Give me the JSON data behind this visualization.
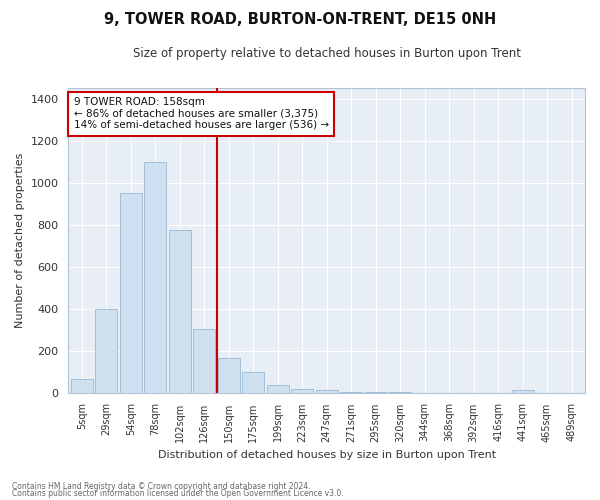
{
  "title": "9, TOWER ROAD, BURTON-ON-TRENT, DE15 0NH",
  "subtitle": "Size of property relative to detached houses in Burton upon Trent",
  "xlabel": "Distribution of detached houses by size in Burton upon Trent",
  "ylabel": "Number of detached properties",
  "footnote1": "Contains HM Land Registry data © Crown copyright and database right 2024.",
  "footnote2": "Contains public sector information licensed under the Open Government Licence v3.0.",
  "bar_labels": [
    "5sqm",
    "29sqm",
    "54sqm",
    "78sqm",
    "102sqm",
    "126sqm",
    "150sqm",
    "175sqm",
    "199sqm",
    "223sqm",
    "247sqm",
    "271sqm",
    "295sqm",
    "320sqm",
    "344sqm",
    "368sqm",
    "392sqm",
    "416sqm",
    "441sqm",
    "465sqm",
    "489sqm"
  ],
  "bar_values": [
    65,
    400,
    950,
    1100,
    775,
    305,
    165,
    100,
    37,
    18,
    10,
    5,
    3,
    1,
    0,
    0,
    0,
    0,
    12,
    0,
    0
  ],
  "bar_color": "#cfe0f0",
  "bar_edge_color": "#9ab8d4",
  "vline_color": "#cc0000",
  "vline_x_idx": 5.5,
  "ylim": [
    0,
    1450
  ],
  "yticks": [
    0,
    200,
    400,
    600,
    800,
    1000,
    1200,
    1400
  ],
  "annotation_title": "9 TOWER ROAD: 158sqm",
  "annotation_line1": "← 86% of detached houses are smaller (3,375)",
  "annotation_line2": "14% of semi-detached houses are larger (536) →",
  "annotation_box_color": "#ffffff",
  "annotation_box_edge": "#cc0000",
  "plot_bg_color": "#e8eef5",
  "grid_color": "#ffffff",
  "background_color": "#ffffff"
}
